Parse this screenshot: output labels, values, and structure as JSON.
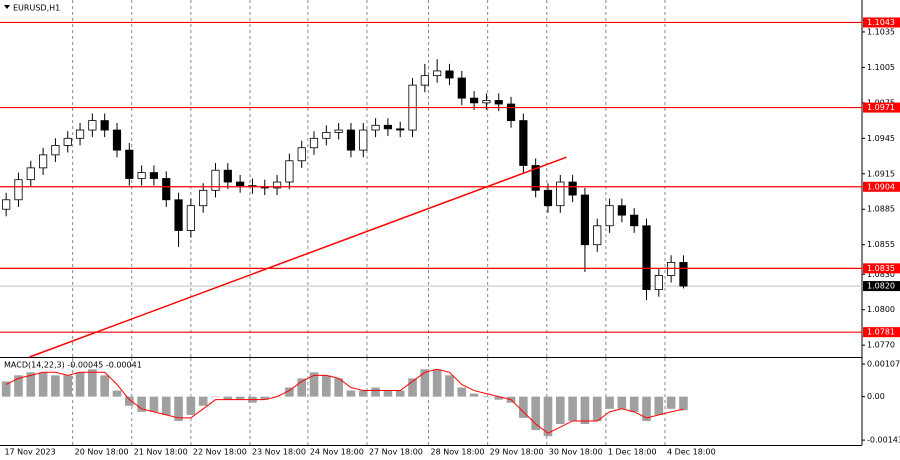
{
  "chart_data": [
    {
      "type": "candlestick",
      "title": "EURUSD,H1",
      "xlim": [
        0,
        70
      ],
      "ylim": [
        1.076,
        1.1062
      ],
      "yticks": [
        1.1035,
        1.1005,
        1.0975,
        1.0945,
        1.0915,
        1.0885,
        1.0855,
        {
          "value": 1.083,
          "label": "1.0830"
        },
        {
          "value": 1.08,
          "label": "1.0800"
        },
        {
          "value": 1.077,
          "label": "1.0770"
        }
      ],
      "xticks": [
        {
          "value": 0.2,
          "label": "17 Nov 2023"
        },
        {
          "value": 5.9,
          "label": "20 Nov 18:00"
        },
        {
          "value": 10.7,
          "label": "21 Nov 18:00"
        },
        {
          "value": 15.5,
          "label": "22 Nov 18:00"
        },
        {
          "value": 20.3,
          "label": "23 Nov 18:00"
        },
        {
          "value": 25,
          "label": "24 Nov 18:00"
        },
        {
          "value": 29.8,
          "label": "27 Nov 18:00"
        },
        {
          "value": 34.8,
          "label": "28 Nov 18:00"
        },
        {
          "value": 39.6,
          "label": "29 Nov 18:00"
        },
        {
          "value": 44.4,
          "label": "30 Nov 18:00"
        },
        {
          "value": 49.2,
          "label": "1 Dec 18:00"
        },
        {
          "value": 54,
          "label": "4 Dec 18:00"
        }
      ],
      "grid": true,
      "up_color": "#ffffff",
      "down_color": "#000000",
      "open": [
        1.0885,
        1.0893,
        1.091,
        1.092,
        1.0931,
        1.0939,
        1.0945,
        1.0952,
        1.096,
        1.0952,
        1.0935,
        1.0911,
        1.0916,
        1.0911,
        1.0893,
        1.0867,
        1.0888,
        1.0901,
        1.0918,
        1.0908,
        1.0905,
        1.0904,
        1.0903,
        1.0908,
        1.0926,
        1.0937,
        1.0945,
        1.095,
        1.0952,
        1.0935,
        1.0952,
        1.0956,
        1.0953,
        1.0952,
        1.099,
        1.0998,
        1.1002,
        1.0996,
        1.0979,
        1.0975,
        1.0977,
        1.0974,
        1.096,
        1.0922,
        1.0901,
        1.0888,
        1.0908,
        1.0897,
        1.0855,
        1.0871,
        1.0888,
        1.088,
        1.0871,
        1.0817,
        1.0829,
        1.084
      ],
      "high": [
        1.0899,
        1.0916,
        1.0926,
        1.0937,
        1.0945,
        1.0951,
        1.0958,
        1.0966,
        1.0966,
        1.0958,
        1.0941,
        1.0922,
        1.0922,
        1.0917,
        1.0899,
        1.0894,
        1.0907,
        1.0924,
        1.0924,
        1.0914,
        1.0911,
        1.091,
        1.0914,
        1.0932,
        1.0943,
        1.0951,
        1.0956,
        1.0958,
        1.0958,
        1.0958,
        1.0962,
        1.0962,
        1.0959,
        1.0996,
        1.1008,
        1.1012,
        1.1008,
        1.1002,
        1.0985,
        1.0983,
        1.0983,
        1.098,
        1.0966,
        1.0928,
        1.0907,
        1.0914,
        1.0914,
        1.0903,
        1.0877,
        1.0894,
        1.0894,
        1.0886,
        1.0877,
        1.0835,
        1.0846,
        1.0846
      ],
      "low": [
        1.0879,
        1.0887,
        1.0904,
        1.0914,
        1.0925,
        1.0933,
        1.0939,
        1.0946,
        1.0946,
        1.0929,
        1.0905,
        1.0905,
        1.0905,
        1.0887,
        1.0853,
        1.0861,
        1.0882,
        1.0895,
        1.0902,
        1.0899,
        1.0898,
        1.0897,
        1.0897,
        1.0902,
        1.092,
        1.0931,
        1.0939,
        1.0944,
        1.0929,
        1.0929,
        1.0946,
        1.0947,
        1.0946,
        1.0946,
        1.0984,
        1.0992,
        1.099,
        1.0973,
        1.0969,
        1.0969,
        1.0968,
        1.0954,
        1.0916,
        1.0895,
        1.0882,
        1.0882,
        1.0891,
        1.0832,
        1.0849,
        1.0865,
        1.0874,
        1.0865,
        1.0808,
        1.0811,
        1.0823,
        1.0818
      ],
      "close": [
        1.0893,
        1.091,
        1.092,
        1.0931,
        1.0939,
        1.0945,
        1.0952,
        1.096,
        1.0952,
        1.0935,
        1.0911,
        1.0916,
        1.0911,
        1.0893,
        1.0867,
        1.0888,
        1.0901,
        1.0918,
        1.0908,
        1.0905,
        1.0904,
        1.0903,
        1.0908,
        1.0926,
        1.0937,
        1.0945,
        1.095,
        1.0952,
        1.0935,
        1.0952,
        1.0956,
        1.0953,
        1.0952,
        1.099,
        1.0998,
        1.1002,
        1.0996,
        1.0979,
        1.0975,
        1.0977,
        1.0974,
        1.096,
        1.0922,
        1.0901,
        1.0888,
        1.0908,
        1.0897,
        1.0855,
        1.0871,
        1.0888,
        1.088,
        1.0871,
        1.0817,
        1.0829,
        1.084,
        1.082
      ],
      "levels": [
        1.1043,
        1.0971,
        1.0904,
        1.0835,
        1.0781
      ],
      "level_color": "#ff0000",
      "current_price": {
        "value": 1.082,
        "label": "1.0820"
      },
      "trendline": {
        "x": [
          2.4,
          46
        ],
        "y": [
          1.076,
          1.0929
        ],
        "color": "#ff0000"
      }
    },
    {
      "type": "macd",
      "title": "MACD(14,22,3) -0.00045 -0.00041",
      "ylim": [
        -0.00159,
        0.00127
      ],
      "yticks": [
        0.00107,
        {
          "value": 0,
          "label": "0.00"
        },
        -0.00143
      ],
      "histogram_color": "#a0a0a0",
      "signal_color": "#ff0000",
      "histogram": [
        0.0005,
        0.0007,
        0.0008,
        0.0008,
        0.0007,
        0.0007,
        0.0008,
        0.0009,
        0.0007,
        0.0002,
        -0.0003,
        -0.0005,
        -0.0005,
        -0.0006,
        -0.0008,
        -0.0006,
        -0.0003,
        0,
        -0.0001,
        -0.0001,
        -0.0002,
        -0.0001,
        0,
        0.0003,
        0.0006,
        0.0008,
        0.0007,
        0.0006,
        0.0002,
        0.0002,
        0.0003,
        0.0002,
        0.0002,
        0.0006,
        0.0009,
        0.0009,
        0.0007,
        0.0003,
        0.0001,
        0,
        -0.0001,
        -0.0002,
        -0.0007,
        -0.0011,
        -0.0013,
        -0.0009,
        -0.0008,
        -0.0009,
        -0.0008,
        -0.0004,
        -0.0004,
        -0.0005,
        -0.0008,
        -0.0006,
        -0.0004,
        -0.00045
      ],
      "signal": [
        0.0004,
        0.0006,
        0.0007,
        0.0008,
        0.0008,
        0.0007,
        0.0008,
        0.0008,
        0.0008,
        0.0004,
        -0.0001,
        -0.0004,
        -0.0005,
        -0.0006,
        -0.0007,
        -0.0007,
        -0.0004,
        -0.0001,
        -0.0001,
        -0.0001,
        -0.0001,
        -0.0001,
        0,
        0.0002,
        0.0005,
        0.0007,
        0.0007,
        0.0006,
        0.0003,
        0.0002,
        0.0002,
        0.0002,
        0.0002,
        0.0005,
        0.0008,
        0.0009,
        0.0008,
        0.0004,
        0.0002,
        0.0001,
        0,
        -0.0001,
        -0.0005,
        -0.0009,
        -0.0012,
        -0.001,
        -0.0008,
        -0.0008,
        -0.0008,
        -0.0005,
        -0.0004,
        -0.0005,
        -0.0007,
        -0.0006,
        -0.0005,
        -0.00041
      ]
    }
  ]
}
